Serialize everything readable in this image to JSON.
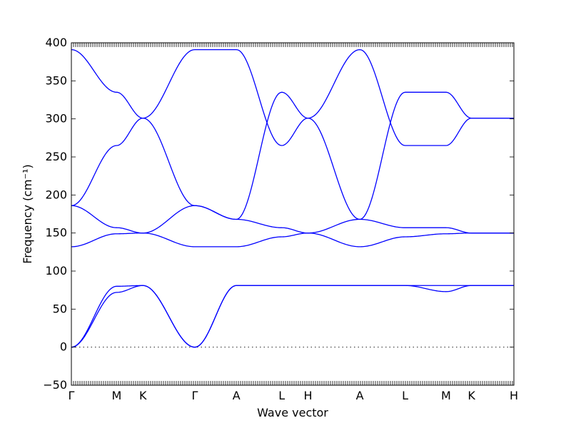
{
  "chart_data": {
    "type": "line",
    "title": "",
    "xlabel": "Wave vector",
    "ylabel": "Frequency (cm⁻¹)",
    "ylim": [
      -50,
      400
    ],
    "yticks": [
      -50,
      0,
      50,
      100,
      150,
      200,
      250,
      300,
      350,
      400
    ],
    "xlim": [
      0,
      6.06
    ],
    "x_labels": [
      "Γ",
      "M",
      "K",
      "Γ",
      "A",
      "L",
      "H",
      "A",
      "L",
      "M",
      "K",
      "H"
    ],
    "x_label_positions": [
      0,
      0.62,
      0.98,
      1.69,
      2.26,
      2.88,
      3.24,
      3.95,
      4.57,
      5.13,
      5.48,
      6.06
    ],
    "zero_line": true,
    "line_color": "#0000ff",
    "series": [
      {
        "x": [
          0,
          0.62,
          0.98,
          1.69,
          2.26,
          2.88,
          3.24,
          3.95,
          4.57,
          5.13,
          5.48,
          6.06
        ],
        "values": [
          0,
          72,
          81,
          0,
          81,
          81,
          81,
          81,
          81,
          73,
          81,
          81
        ]
      },
      {
        "x": [
          0,
          0.62,
          0.98,
          1.69,
          2.26,
          2.88,
          3.24,
          3.95,
          4.57,
          5.13,
          5.48,
          6.06
        ],
        "values": [
          0,
          80,
          81,
          0,
          81,
          81,
          81,
          81,
          81,
          81,
          81,
          81
        ]
      },
      {
        "x": [
          0,
          0.62,
          0.98,
          1.69,
          2.26,
          2.88,
          3.24,
          3.95,
          4.57,
          5.13,
          5.48,
          6.06
        ],
        "values": [
          132,
          149,
          150,
          132,
          132,
          145,
          150,
          132,
          145,
          149,
          150,
          150
        ]
      },
      {
        "x": [
          0,
          0.62,
          0.98,
          1.69,
          2.26,
          2.88,
          3.24,
          3.95,
          4.57,
          5.13,
          5.48,
          6.06
        ],
        "values": [
          186,
          157,
          150,
          186,
          168,
          157,
          150,
          168,
          157,
          157,
          150,
          150
        ]
      },
      {
        "x": [
          0,
          0.62,
          0.98,
          1.69,
          2.26,
          2.88,
          3.24,
          3.95,
          4.57,
          5.13,
          5.48,
          6.06
        ],
        "values": [
          186,
          265,
          301,
          391,
          391,
          265,
          301,
          391,
          265,
          265,
          301,
          301
        ]
      },
      {
        "x": [
          0,
          0.62,
          0.98,
          1.69,
          2.26,
          2.88,
          3.24,
          3.95,
          4.57,
          5.13,
          5.48,
          6.06
        ],
        "values": [
          391,
          335,
          301,
          186,
          168,
          335,
          301,
          168,
          335,
          335,
          301,
          301
        ]
      }
    ]
  }
}
